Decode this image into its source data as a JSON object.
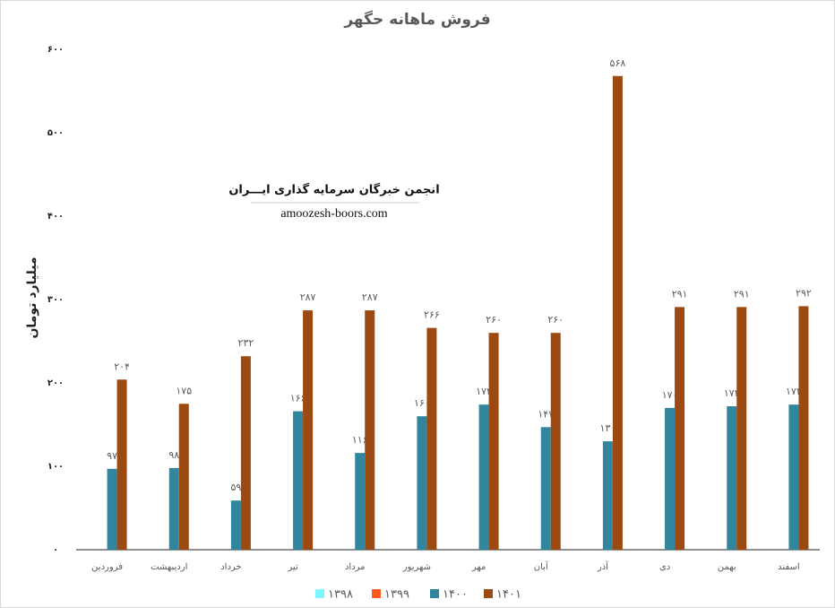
{
  "chart_data": {
    "type": "bar",
    "title": "فروش ماهانه حگهر",
    "y_label": "میلیارد تومان",
    "annotations": [
      "انجمن خبرگان سرمایه گذاری ایـــران",
      "amoozesh-boors.com"
    ],
    "categories": [
      "فروردین",
      "اردیبهشت",
      "خرداد",
      "تیر",
      "مرداد",
      "شهریور",
      "مهر",
      "آبان",
      "آذر",
      "دی",
      "بهمن",
      "اسفند"
    ],
    "series": [
      {
        "name": "۱۳۹۸",
        "color": "#7ff7ff",
        "values": [
          null,
          null,
          null,
          null,
          null,
          null,
          null,
          null,
          null,
          null,
          null,
          null
        ]
      },
      {
        "name": "۱۳۹۹",
        "color": "#ff5a1e",
        "values": [
          null,
          null,
          null,
          null,
          null,
          null,
          null,
          null,
          null,
          null,
          null,
          null
        ]
      },
      {
        "name": "۱۴۰۰",
        "color": "#31859c",
        "values": [
          97,
          98,
          59,
          166,
          116,
          160,
          174,
          147,
          130,
          170,
          172,
          174
        ],
        "value_labels": [
          "۹۷",
          "۹۸",
          "۵۹",
          "۱۶۶",
          "۱۱۶",
          "۱۶۰",
          "۱۷۴",
          "۱۴۷",
          "۱۳۰",
          "۱۷۰",
          "۱۷۲",
          "۱۷۴"
        ]
      },
      {
        "name": "۱۴۰۱",
        "color": "#9c4a12",
        "values": [
          204,
          175,
          232,
          287,
          287,
          266,
          260,
          260,
          568,
          291,
          291,
          292
        ],
        "value_labels": [
          "۲۰۴",
          "۱۷۵",
          "۲۳۲",
          "۲۸۷",
          "۲۸۷",
          "۲۶۶",
          "۲۶۰",
          "۲۶۰",
          "۵۶۸",
          "۲۹۱",
          "۲۹۱",
          "۲۹۲"
        ]
      }
    ],
    "ylim": [
      0,
      600
    ],
    "yticks": [
      {
        "value": 0,
        "label": "۰"
      },
      {
        "value": 100,
        "label": "۱۰۰"
      },
      {
        "value": 200,
        "label": "۲۰۰"
      },
      {
        "value": 300,
        "label": "۳۰۰"
      },
      {
        "value": 400,
        "label": "۴۰۰"
      },
      {
        "value": 500,
        "label": "۵۰۰"
      },
      {
        "value": 600,
        "label": "۶۰۰"
      }
    ],
    "grid": false,
    "legend": "bottom"
  }
}
